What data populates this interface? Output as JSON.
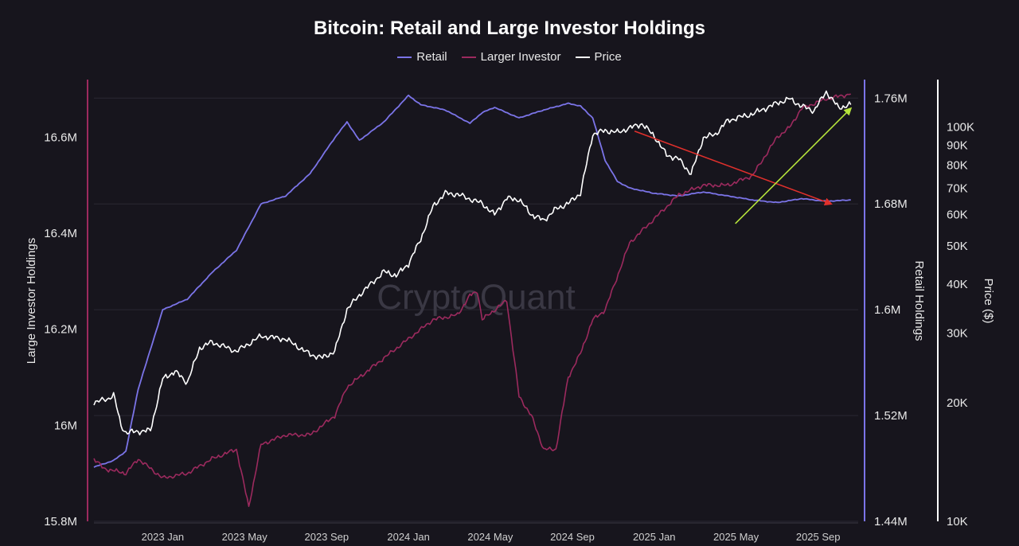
{
  "chart_data": {
    "type": "line",
    "title": "Bitcoin: Retail and Large Investor Holdings",
    "watermark": "CryptoQuant",
    "colors": {
      "retail": "#7b74e8",
      "large": "#9c2a5e",
      "price": "#ffffff",
      "arrow_down": "#e0302c",
      "arrow_up": "#b6e33b",
      "background": "#17151d"
    },
    "legend": [
      {
        "name": "Retail",
        "color": "#7b74e8"
      },
      {
        "name": "Larger Investor",
        "color": "#9c2a5e"
      },
      {
        "name": "Price",
        "color": "#ffffff"
      }
    ],
    "x_ticks": [
      "2023 Jan",
      "2023 May",
      "2023 Sep",
      "2024 Jan",
      "2024 May",
      "2024 Sep",
      "2025 Jan",
      "2025 May",
      "2025 Sep"
    ],
    "x_tick_t": [
      2023.0,
      2023.333,
      2023.667,
      2024.0,
      2024.333,
      2024.667,
      2025.0,
      2025.333,
      2025.667
    ],
    "xlim": [
      2022.72,
      2025.83
    ],
    "left_axis": {
      "label": "Large Investor Holdings",
      "ticks": [
        "16.6M",
        "16.4M",
        "16.2M",
        "16M",
        "15.8M"
      ],
      "values": [
        16.6,
        16.4,
        16.2,
        16.0,
        15.8
      ],
      "ylim": [
        15.8,
        16.72
      ]
    },
    "right_axis": {
      "label": "Retail Holdings",
      "ticks": [
        "1.76M",
        "1.68M",
        "1.6M",
        "1.52M",
        "1.44M"
      ],
      "values": [
        1.76,
        1.68,
        1.6,
        1.52,
        1.44
      ],
      "ylim": [
        1.44,
        1.774
      ]
    },
    "price_axis": {
      "label": "Price ($)",
      "scale": "log",
      "ticks": [
        "100K",
        "90K",
        "80K",
        "70K",
        "60K",
        "50K",
        "40K",
        "30K",
        "20K",
        "10K"
      ],
      "values": [
        100000,
        90000,
        80000,
        70000,
        60000,
        50000,
        40000,
        30000,
        20000,
        10000
      ],
      "ylim": [
        10000,
        132000
      ]
    },
    "series": [
      {
        "name": "Retail",
        "axis": "right",
        "t": [
          2022.72,
          2022.8,
          2022.85,
          2022.9,
          2023.0,
          2023.1,
          2023.2,
          2023.3,
          2023.4,
          2023.5,
          2023.6,
          2023.7,
          2023.75,
          2023.8,
          2023.9,
          2024.0,
          2024.05,
          2024.15,
          2024.25,
          2024.3,
          2024.35,
          2024.45,
          2024.55,
          2024.65,
          2024.7,
          2024.75,
          2024.8,
          2024.85,
          2024.9,
          2025.0,
          2025.1,
          2025.2,
          2025.3,
          2025.4,
          2025.5,
          2025.6,
          2025.7,
          2025.8
        ],
        "values": [
          1.481,
          1.486,
          1.493,
          1.54,
          1.6,
          1.608,
          1.628,
          1.645,
          1.68,
          1.686,
          1.703,
          1.73,
          1.742,
          1.728,
          1.742,
          1.762,
          1.755,
          1.751,
          1.741,
          1.749,
          1.753,
          1.745,
          1.751,
          1.756,
          1.754,
          1.745,
          1.713,
          1.697,
          1.692,
          1.688,
          1.686,
          1.689,
          1.686,
          1.683,
          1.681,
          1.684,
          1.682,
          1.683
        ]
      },
      {
        "name": "Larger Investor",
        "axis": "left",
        "t": [
          2022.72,
          2022.76,
          2022.85,
          2022.9,
          2023.0,
          2023.1,
          2023.2,
          2023.3,
          2023.35,
          2023.4,
          2023.5,
          2023.6,
          2023.7,
          2023.75,
          2023.8,
          2023.9,
          2024.0,
          2024.1,
          2024.2,
          2024.25,
          2024.28,
          2024.3,
          2024.4,
          2024.45,
          2024.5,
          2024.55,
          2024.6,
          2024.65,
          2024.7,
          2024.75,
          2024.8,
          2024.9,
          2025.0,
          2025.1,
          2025.2,
          2025.3,
          2025.4,
          2025.5,
          2025.55,
          2025.6,
          2025.7,
          2025.8
        ],
        "values": [
          15.93,
          15.91,
          15.9,
          15.93,
          15.89,
          15.9,
          15.93,
          15.95,
          15.83,
          15.96,
          15.98,
          15.98,
          16.02,
          16.08,
          16.1,
          16.14,
          16.18,
          16.22,
          16.23,
          16.27,
          16.28,
          16.22,
          16.26,
          16.06,
          16.02,
          15.95,
          15.95,
          16.1,
          16.15,
          16.22,
          16.24,
          16.38,
          16.43,
          16.48,
          16.5,
          16.5,
          16.52,
          16.6,
          16.62,
          16.66,
          16.68,
          16.69
        ]
      },
      {
        "name": "Price",
        "axis": "price",
        "t": [
          2022.72,
          2022.78,
          2022.8,
          2022.83,
          2022.85,
          2022.9,
          2022.95,
          2023.0,
          2023.05,
          2023.1,
          2023.15,
          2023.2,
          2023.3,
          2023.4,
          2023.5,
          2023.6,
          2023.65,
          2023.7,
          2023.75,
          2023.8,
          2023.9,
          2023.95,
          2024.0,
          2024.05,
          2024.1,
          2024.15,
          2024.2,
          2024.3,
          2024.35,
          2024.4,
          2024.45,
          2024.5,
          2024.55,
          2024.6,
          2024.65,
          2024.7,
          2024.75,
          2024.8,
          2024.85,
          2024.95,
          2025.0,
          2025.05,
          2025.1,
          2025.15,
          2025.2,
          2025.25,
          2025.3,
          2025.4,
          2025.5,
          2025.55,
          2025.6,
          2025.65,
          2025.7,
          2025.75,
          2025.8
        ],
        "values": [
          20000,
          20500,
          21000,
          17500,
          16800,
          16900,
          17000,
          23000,
          24000,
          22500,
          27500,
          28500,
          27000,
          29500,
          29000,
          26500,
          26000,
          27000,
          34500,
          37500,
          43000,
          42000,
          45000,
          52000,
          63000,
          68000,
          67500,
          64000,
          60000,
          66000,
          65500,
          60000,
          58000,
          62000,
          64000,
          68000,
          96000,
          98000,
          97000,
          102000,
          95000,
          85000,
          83000,
          76000,
          94000,
          96000,
          104000,
          108000,
          115000,
          118000,
          113000,
          110000,
          123000,
          112000,
          114000
        ]
      }
    ],
    "annotations": [
      {
        "type": "arrow",
        "color": "red",
        "direction": "down",
        "from": [
          2024.92,
          1.735
        ],
        "to": [
          2025.72,
          1.68
        ]
      },
      {
        "type": "arrow",
        "color": "green",
        "direction": "up",
        "from": [
          2025.33,
          16.42
        ],
        "to": [
          2025.8,
          16.66
        ]
      }
    ]
  }
}
